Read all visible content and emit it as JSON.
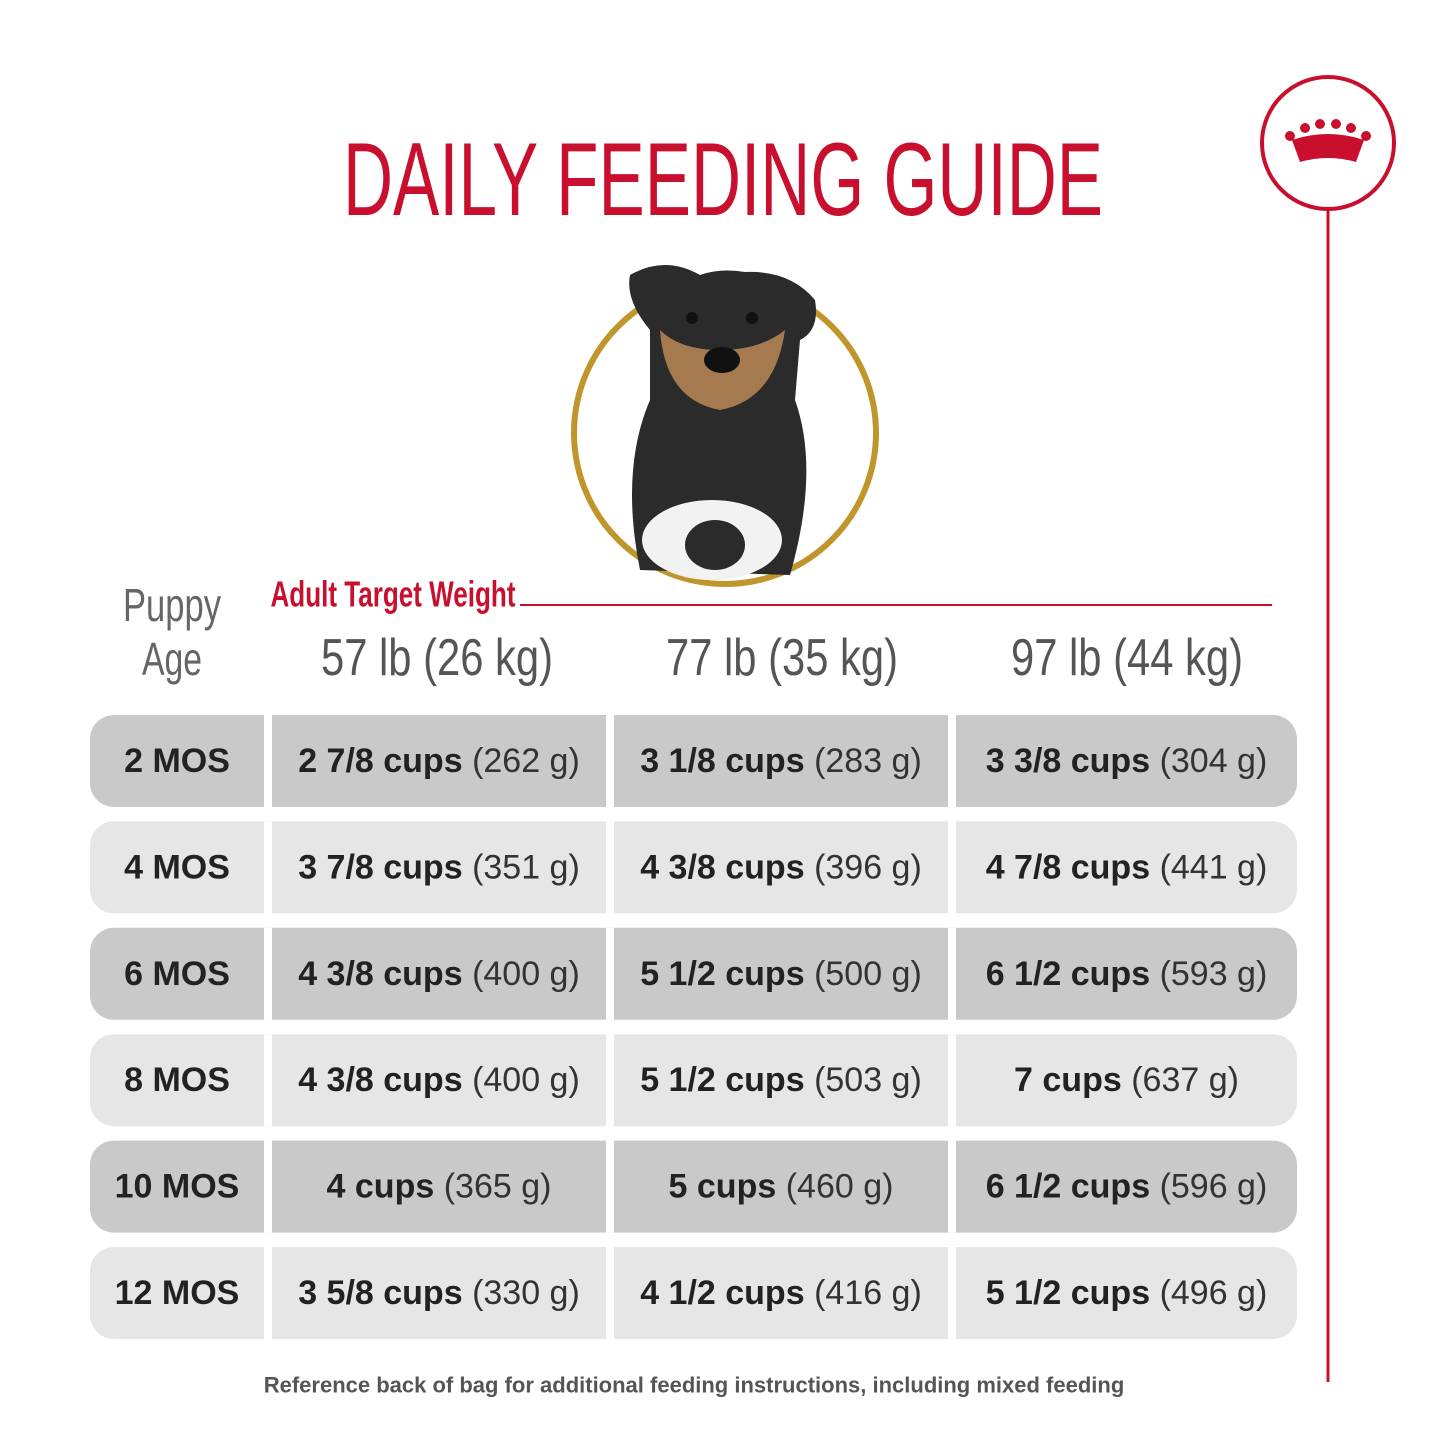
{
  "header": {
    "title": "DAILY FEEDING GUIDE"
  },
  "table": {
    "age_header": [
      "Puppy",
      "Age"
    ],
    "weight_label": "Adult Target Weight",
    "columns": [
      "57 lb (26 kg)",
      "77 lb (35 kg)",
      "97 lb (44 kg)"
    ],
    "rows": [
      {
        "age": "2 MOS",
        "cells": [
          {
            "amount": "2 7/8 cups",
            "grams": "(262 g)"
          },
          {
            "amount": "3 1/8 cups",
            "grams": "(283 g)"
          },
          {
            "amount": "3 3/8 cups",
            "grams": "(304 g)"
          }
        ]
      },
      {
        "age": "4 MOS",
        "cells": [
          {
            "amount": "3 7/8 cups",
            "grams": "(351 g)"
          },
          {
            "amount": "4 3/8 cups",
            "grams": "(396 g)"
          },
          {
            "amount": "4 7/8 cups",
            "grams": "(441 g)"
          }
        ]
      },
      {
        "age": "6 MOS",
        "cells": [
          {
            "amount": "4 3/8 cups",
            "grams": "(400 g)"
          },
          {
            "amount": "5 1/2 cups",
            "grams": "(500 g)"
          },
          {
            "amount": "6 1/2 cups",
            "grams": "(593 g)"
          }
        ]
      },
      {
        "age": "8 MOS",
        "cells": [
          {
            "amount": "4 3/8 cups",
            "grams": "(400 g)"
          },
          {
            "amount": "5 1/2 cups",
            "grams": "(503 g)"
          },
          {
            "amount": "7 cups",
            "grams": "(637 g)"
          }
        ]
      },
      {
        "age": "10 MOS",
        "cells": [
          {
            "amount": "4 cups",
            "grams": "(365 g)"
          },
          {
            "amount": "5 cups",
            "grams": "(460 g)"
          },
          {
            "amount": "6 1/2 cups",
            "grams": "(596 g)"
          }
        ]
      },
      {
        "age": "12 MOS",
        "cells": [
          {
            "amount": "3 5/8 cups",
            "grams": "(330 g)"
          },
          {
            "amount": "4 1/2 cups",
            "grams": "(416 g)"
          },
          {
            "amount": "5 1/2 cups",
            "grams": "(496 g)"
          }
        ]
      }
    ]
  },
  "footer": {
    "note": "Reference back of bag for additional feeding instructions, including mixed feeding"
  }
}
